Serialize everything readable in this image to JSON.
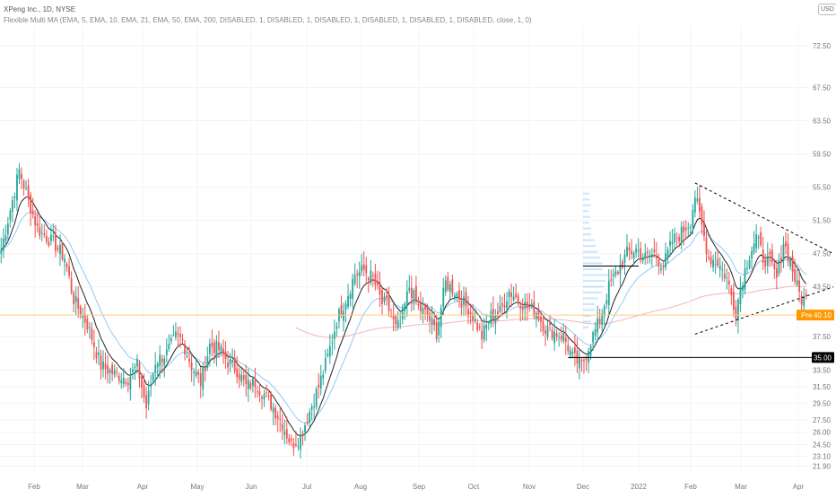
{
  "header": {
    "title": "XPeng Inc., 1D, NYSE",
    "indicator": "Flexible Multi MA (EMA, 5, EMA, 10, EMA, 21, EMA, 50, EMA, 200, DISABLED, 1, DISABLED, 1, DISABLED, 1, DISABLED, 1, DISABLED, 1, DISABLED, close, 1, 0)",
    "currency": "USD"
  },
  "colors": {
    "up": "#26a69a",
    "down": "#ef5350",
    "ema_fast": "#222222",
    "ema_slow": "#90caf9",
    "ema_long": "#f4b6b6",
    "pre_line": "#ffcc80",
    "pre_badge": "#ff9800",
    "level_badge": "#000000",
    "volume_profile": "#90caf9"
  },
  "chart_data": {
    "type": "candlestick",
    "x_ticks": [
      "Feb",
      "Mar",
      "Apr",
      "May",
      "Jun",
      "Jul",
      "Aug",
      "Sep",
      "Oct",
      "Nov",
      "Dec",
      "2022",
      "Feb",
      "Mar",
      "Apr"
    ],
    "y_ticks": [
      "72.50",
      "67.50",
      "63.50",
      "59.50",
      "55.50",
      "51.50",
      "47.50",
      "43.50",
      "37.50",
      "33.50",
      "31.50",
      "29.50",
      "27.50",
      "26.00",
      "24.50",
      "23.10",
      "21.90"
    ],
    "ylim": [
      21.0,
      75.0
    ],
    "ema_periods": [
      5,
      10,
      21,
      50,
      200
    ],
    "pre_market": {
      "label": "Pre",
      "value": 40.1
    },
    "horizontal_level": {
      "value": 35.0,
      "label": "35.00"
    },
    "close_anchors": [
      [
        0,
        48.0
      ],
      [
        8,
        57.5
      ],
      [
        16,
        50.5
      ],
      [
        24,
        48.5
      ],
      [
        28,
        47.0
      ],
      [
        32,
        42.0
      ],
      [
        38,
        39.0
      ],
      [
        44,
        34.0
      ],
      [
        50,
        33.0
      ],
      [
        56,
        32.5
      ],
      [
        60,
        34.0
      ],
      [
        64,
        29.0
      ],
      [
        68,
        34.5
      ],
      [
        73,
        35.5
      ],
      [
        77,
        37.5
      ],
      [
        80,
        37.0
      ],
      [
        84,
        34.0
      ],
      [
        88,
        32.0
      ],
      [
        92,
        36.5
      ],
      [
        96,
        36.0
      ],
      [
        100,
        34.5
      ],
      [
        104,
        33.5
      ],
      [
        108,
        31.5
      ],
      [
        112,
        32.0
      ],
      [
        116,
        30.5
      ],
      [
        120,
        29.0
      ],
      [
        124,
        27.0
      ],
      [
        128,
        24.5
      ],
      [
        132,
        25.5
      ],
      [
        136,
        28.5
      ],
      [
        140,
        31.5
      ],
      [
        144,
        35.0
      ],
      [
        148,
        39.5
      ],
      [
        152,
        42.0
      ],
      [
        156,
        45.0
      ],
      [
        160,
        45.5
      ],
      [
        164,
        44.5
      ],
      [
        168,
        41.5
      ],
      [
        170,
        41.5
      ],
      [
        174,
        38.5
      ],
      [
        176,
        39.0
      ],
      [
        180,
        43.5
      ],
      [
        184,
        41.0
      ],
      [
        188,
        40.0
      ],
      [
        192,
        38.0
      ],
      [
        196,
        44.0
      ],
      [
        200,
        43.0
      ],
      [
        204,
        41.5
      ],
      [
        208,
        40.0
      ],
      [
        212,
        37.5
      ],
      [
        216,
        40.0
      ],
      [
        220,
        40.5
      ],
      [
        224,
        43.0
      ],
      [
        228,
        42.0
      ],
      [
        232,
        41.0
      ],
      [
        236,
        40.5
      ],
      [
        240,
        38.5
      ],
      [
        244,
        38.0
      ],
      [
        248,
        37.5
      ],
      [
        252,
        35.0
      ],
      [
        256,
        34.0
      ],
      [
        260,
        37.0
      ],
      [
        264,
        39.5
      ],
      [
        268,
        43.5
      ],
      [
        272,
        45.5
      ],
      [
        276,
        47.5
      ],
      [
        280,
        48.0
      ],
      [
        284,
        47.0
      ],
      [
        288,
        47.5
      ],
      [
        292,
        46.0
      ],
      [
        296,
        49.0
      ],
      [
        300,
        50.0
      ],
      [
        304,
        51.5
      ],
      [
        306,
        54.5
      ],
      [
        308,
        52.0
      ],
      [
        312,
        47.0
      ],
      [
        316,
        46.5
      ],
      [
        320,
        44.5
      ],
      [
        324,
        40.5
      ],
      [
        326,
        43.5
      ],
      [
        330,
        47.5
      ],
      [
        333,
        49.5
      ],
      [
        336,
        47.0
      ],
      [
        339,
        46.5
      ],
      [
        342,
        44.5
      ],
      [
        345,
        49.0
      ],
      [
        348,
        46.5
      ],
      [
        351,
        43.5
      ],
      [
        353,
        42.0
      ]
    ],
    "triangle": {
      "upper_start": [
        306,
        56.0
      ],
      "upper_end": [
        367,
        47.5
      ],
      "lower_start": [
        306,
        37.8
      ],
      "lower_end": [
        367,
        43.5
      ]
    }
  }
}
